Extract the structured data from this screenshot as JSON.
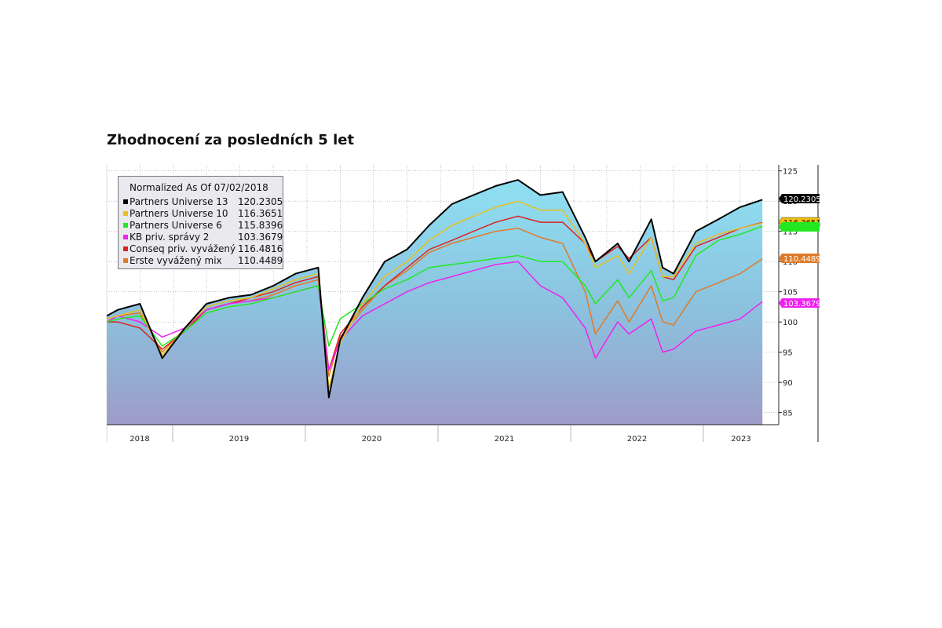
{
  "chart_data": {
    "type": "line",
    "title": "Zhodnocení za posledních 5 let",
    "legend_title": "Normalized As Of 07/02/2018",
    "legend_position": "top-left",
    "grid": true,
    "ylim": [
      83,
      126
    ],
    "yticks": [
      85,
      90,
      95,
      100,
      105,
      110,
      115,
      120,
      125
    ],
    "year_labels": [
      "2018",
      "2019",
      "2020",
      "2021",
      "2022",
      "2023"
    ],
    "x": [
      "2018-07",
      "2018-08",
      "2018-10",
      "2018-12",
      "2019-02",
      "2019-04",
      "2019-06",
      "2019-08",
      "2019-10",
      "2019-12",
      "2020-02",
      "2020-03",
      "2020-04",
      "2020-06",
      "2020-08",
      "2020-10",
      "2020-12",
      "2021-02",
      "2021-04",
      "2021-06",
      "2021-08",
      "2021-10",
      "2021-12",
      "2022-02",
      "2022-03",
      "2022-05",
      "2022-06",
      "2022-08",
      "2022-09",
      "2022-10",
      "2022-12",
      "2023-02",
      "2023-04",
      "2023-06"
    ],
    "series": [
      {
        "name": "Partners Universe 13",
        "last_value": "120.2305",
        "color": "#000000",
        "values": [
          101,
          102,
          103,
          94,
          99,
          103,
          104,
          104.5,
          106,
          108,
          109,
          87.5,
          97,
          104,
          110,
          112,
          116,
          119.5,
          121,
          122.5,
          123.5,
          121,
          121.5,
          114,
          110,
          113,
          110,
          117,
          109,
          108,
          115,
          117,
          119,
          120.23
        ]
      },
      {
        "name": "Partners Universe 10",
        "last_value": "116.3651",
        "color": "#e8c020",
        "values": [
          100.5,
          101,
          102,
          94.5,
          99,
          102.5,
          103.5,
          104,
          105.5,
          107,
          108,
          89,
          96.5,
          103,
          107.5,
          110,
          113.5,
          116,
          117.5,
          119,
          120,
          118.5,
          118.5,
          113,
          109,
          111,
          108,
          114,
          107.5,
          107.5,
          113,
          114.5,
          115.5,
          116.37
        ]
      },
      {
        "name": "Partners Universe 6",
        "last_value": "115.8396",
        "color": "#22e822",
        "values": [
          100,
          100.5,
          101,
          96,
          98.5,
          101.5,
          102.5,
          103,
          104,
          105,
          106,
          96,
          100.5,
          103,
          105.5,
          107,
          109,
          109.5,
          110,
          110.5,
          111,
          110,
          110,
          106,
          103,
          107,
          104,
          108.5,
          103.5,
          104,
          111,
          113.5,
          114.5,
          115.84
        ]
      },
      {
        "name": "KB priv. správy 2",
        "last_value": "103.3679",
        "color": "#ee22ee",
        "values": [
          100,
          101,
          100,
          97.5,
          99,
          102,
          103,
          103.5,
          104,
          105,
          106,
          92,
          97,
          101,
          103,
          105,
          106.5,
          107.5,
          108.5,
          109.5,
          110,
          106,
          104,
          99,
          94,
          100,
          98,
          100.5,
          95,
          95.5,
          98.5,
          99.5,
          100.5,
          103.37
        ]
      },
      {
        "name": "Conseq priv. vyvážený",
        "last_value": "116.4816",
        "color": "#dd2222",
        "values": [
          100,
          100,
          99,
          95.5,
          98.5,
          102,
          103,
          104,
          105,
          106.5,
          107.5,
          92,
          98,
          102.5,
          106,
          109,
          112,
          113.5,
          115,
          116.5,
          117.5,
          116.5,
          116.5,
          113,
          110,
          112.5,
          110.5,
          114,
          107.5,
          107,
          112.5,
          114,
          115.5,
          116.48
        ]
      },
      {
        "name": "Erste vyvážený mix",
        "last_value": "110.4489",
        "color": "#e07a28",
        "values": [
          100.5,
          101,
          101.5,
          95,
          99,
          102,
          103,
          103.5,
          104.5,
          106,
          107,
          91,
          97.5,
          102,
          106,
          108.5,
          111.5,
          113,
          114,
          115,
          115.5,
          114,
          113,
          105,
          98,
          103.5,
          100,
          106,
          100,
          99.5,
          105,
          106.5,
          108,
          110.45
        ]
      }
    ]
  }
}
